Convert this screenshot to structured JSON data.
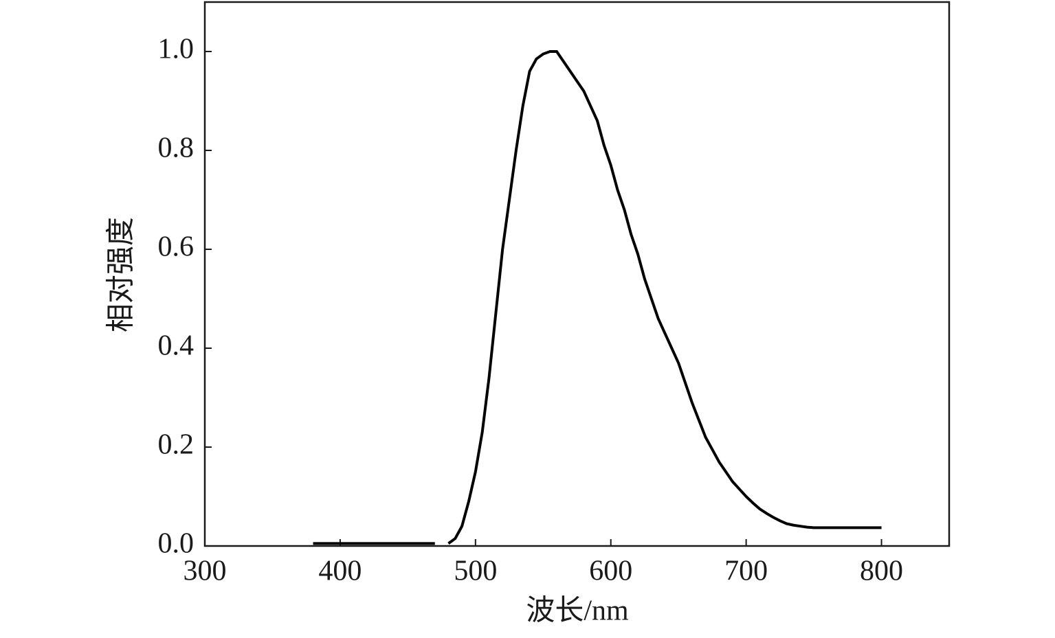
{
  "chart_data": {
    "type": "line",
    "xlabel": "波长/nm",
    "ylabel": "相对强度",
    "x": [
      380,
      385,
      390,
      395,
      400,
      405,
      410,
      415,
      420,
      425,
      430,
      435,
      440,
      445,
      450,
      455,
      460,
      465,
      470,
      475,
      480,
      485,
      490,
      495,
      500,
      505,
      510,
      515,
      520,
      525,
      530,
      535,
      540,
      545,
      550,
      555,
      560,
      565,
      570,
      575,
      580,
      585,
      590,
      595,
      600,
      605,
      610,
      615,
      620,
      625,
      630,
      635,
      640,
      645,
      650,
      655,
      660,
      665,
      670,
      675,
      680,
      685,
      690,
      695,
      700,
      705,
      710,
      715,
      720,
      725,
      730,
      735,
      740,
      745,
      750,
      755,
      760,
      765,
      770,
      775,
      780,
      785,
      790,
      795,
      800
    ],
    "series": [
      {
        "color": "#000000",
        "values": [
          0.005,
          0.005,
          0.005,
          0.005,
          0.005,
          0.005,
          0.005,
          0.005,
          0.005,
          0.005,
          0.005,
          0.005,
          0.005,
          0.005,
          0.005,
          0.005,
          0.005,
          0.005,
          0.005,
          null,
          0.005,
          0.015,
          0.04,
          0.09,
          0.15,
          0.23,
          0.34,
          0.47,
          0.6,
          0.7,
          0.8,
          0.89,
          0.96,
          0.985,
          0.995,
          1.0,
          1.0,
          0.98,
          0.96,
          0.94,
          0.92,
          0.89,
          0.86,
          0.81,
          0.77,
          0.72,
          0.68,
          0.63,
          0.59,
          0.54,
          0.5,
          0.46,
          0.43,
          0.4,
          0.37,
          0.33,
          0.29,
          0.255,
          0.22,
          0.195,
          0.17,
          0.15,
          0.13,
          0.115,
          0.1,
          0.087,
          0.075,
          0.066,
          0.058,
          0.051,
          0.045,
          0.042,
          0.04,
          0.038,
          0.037,
          0.037,
          0.037,
          0.037,
          0.037,
          0.037,
          0.037,
          0.037,
          0.037,
          0.037,
          0.037
        ]
      }
    ],
    "xlim": [
      300,
      850
    ],
    "xticks": [
      300,
      400,
      500,
      600,
      700,
      800
    ],
    "ylim": [
      0,
      1.1
    ],
    "yticks": [
      {
        "value": 0,
        "label": "0.0"
      },
      {
        "value": 0.2,
        "label": "0.2"
      },
      {
        "value": 0.4,
        "label": "0.4"
      },
      {
        "value": 0.6,
        "label": "0.6"
      },
      {
        "value": 0.8,
        "label": "0.8"
      },
      {
        "value": 1.0,
        "label": "1.0"
      }
    ]
  }
}
